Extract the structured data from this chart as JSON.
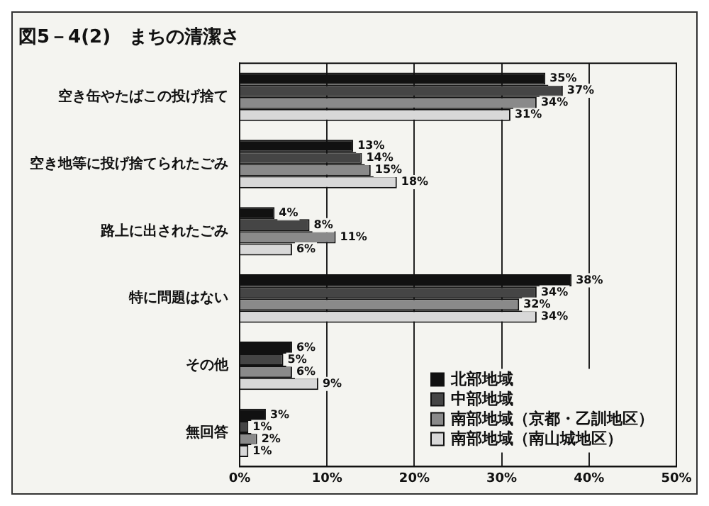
{
  "chart_data": {
    "type": "bar",
    "orientation": "horizontal",
    "title": "図5－4(2)　まちの清潔さ",
    "categories": [
      "空き缶やたばこの投げ捨て",
      "空き地等に投げ捨てられたごみ",
      "路上に出されたごみ",
      "特に問題はない",
      "その他",
      "無回答"
    ],
    "series": [
      {
        "name": "北部地域",
        "color": "#111111",
        "values": [
          35,
          13,
          4,
          38,
          6,
          3
        ],
        "value_labels": [
          "35%",
          "13%",
          "4%",
          "38%",
          "6%",
          "3%"
        ]
      },
      {
        "name": "中部地域",
        "color": "#454545",
        "values": [
          37,
          14,
          8,
          34,
          5,
          1
        ],
        "value_labels": [
          "37%",
          "14%",
          "8%",
          "34%",
          "5%",
          "1%"
        ]
      },
      {
        "name": "南部地域（京都・乙訓地区）",
        "color": "#8a8a8a",
        "values": [
          34,
          15,
          11,
          32,
          6,
          2
        ],
        "value_labels": [
          "34%",
          "15%",
          "11%",
          "32%",
          "6%",
          "2%"
        ]
      },
      {
        "name": "南部地域（南山城地区）",
        "color": "#d8d8d8",
        "values": [
          31,
          18,
          6,
          34,
          9,
          1
        ],
        "value_labels": [
          "31%",
          "18%",
          "6%",
          "34%",
          "9%",
          "1%"
        ]
      }
    ],
    "xlim": [
      0,
      50
    ],
    "xticks": [
      {
        "value": 0,
        "label": "0%"
      },
      {
        "value": 10,
        "label": "10%"
      },
      {
        "value": 20,
        "label": "20%"
      },
      {
        "value": 30,
        "label": "30%"
      },
      {
        "value": 40,
        "label": "40%"
      },
      {
        "value": 50,
        "label": "50%"
      }
    ],
    "grid": "x",
    "legend": "bottom right"
  }
}
